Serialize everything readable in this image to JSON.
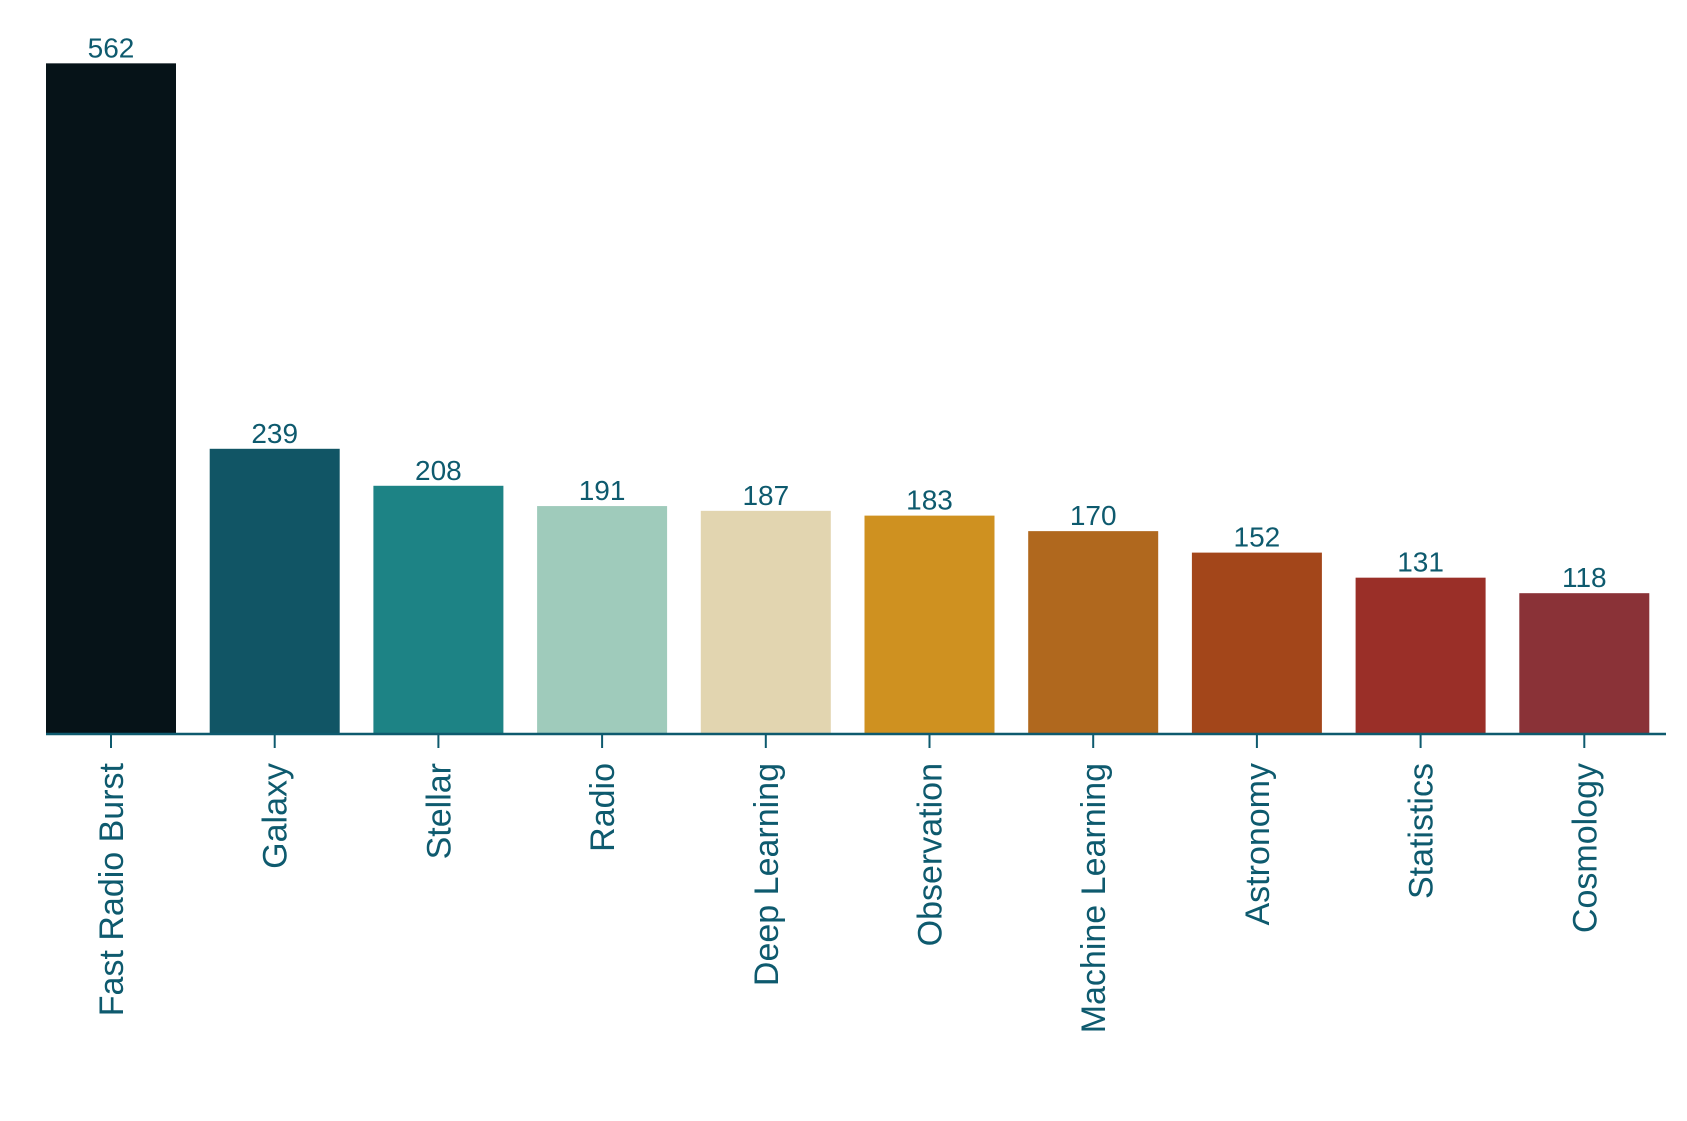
{
  "chart_data": {
    "type": "bar",
    "categories": [
      "Fast Radio Burst",
      "Galaxy",
      "Stellar",
      "Radio",
      "Deep Learning",
      "Observation",
      "Machine Learning",
      "Astronomy",
      "Statistics",
      "Cosmology"
    ],
    "values": [
      562,
      239,
      208,
      191,
      187,
      183,
      170,
      152,
      131,
      118
    ],
    "colors": [
      "#061318",
      "#115565",
      "#1d8385",
      "#9fcbbb",
      "#e2d5b0",
      "#cf9120",
      "#b0681e",
      "#a3461a",
      "#9a2f28",
      "#8a3237"
    ],
    "ylim": [
      0,
      600
    ]
  }
}
